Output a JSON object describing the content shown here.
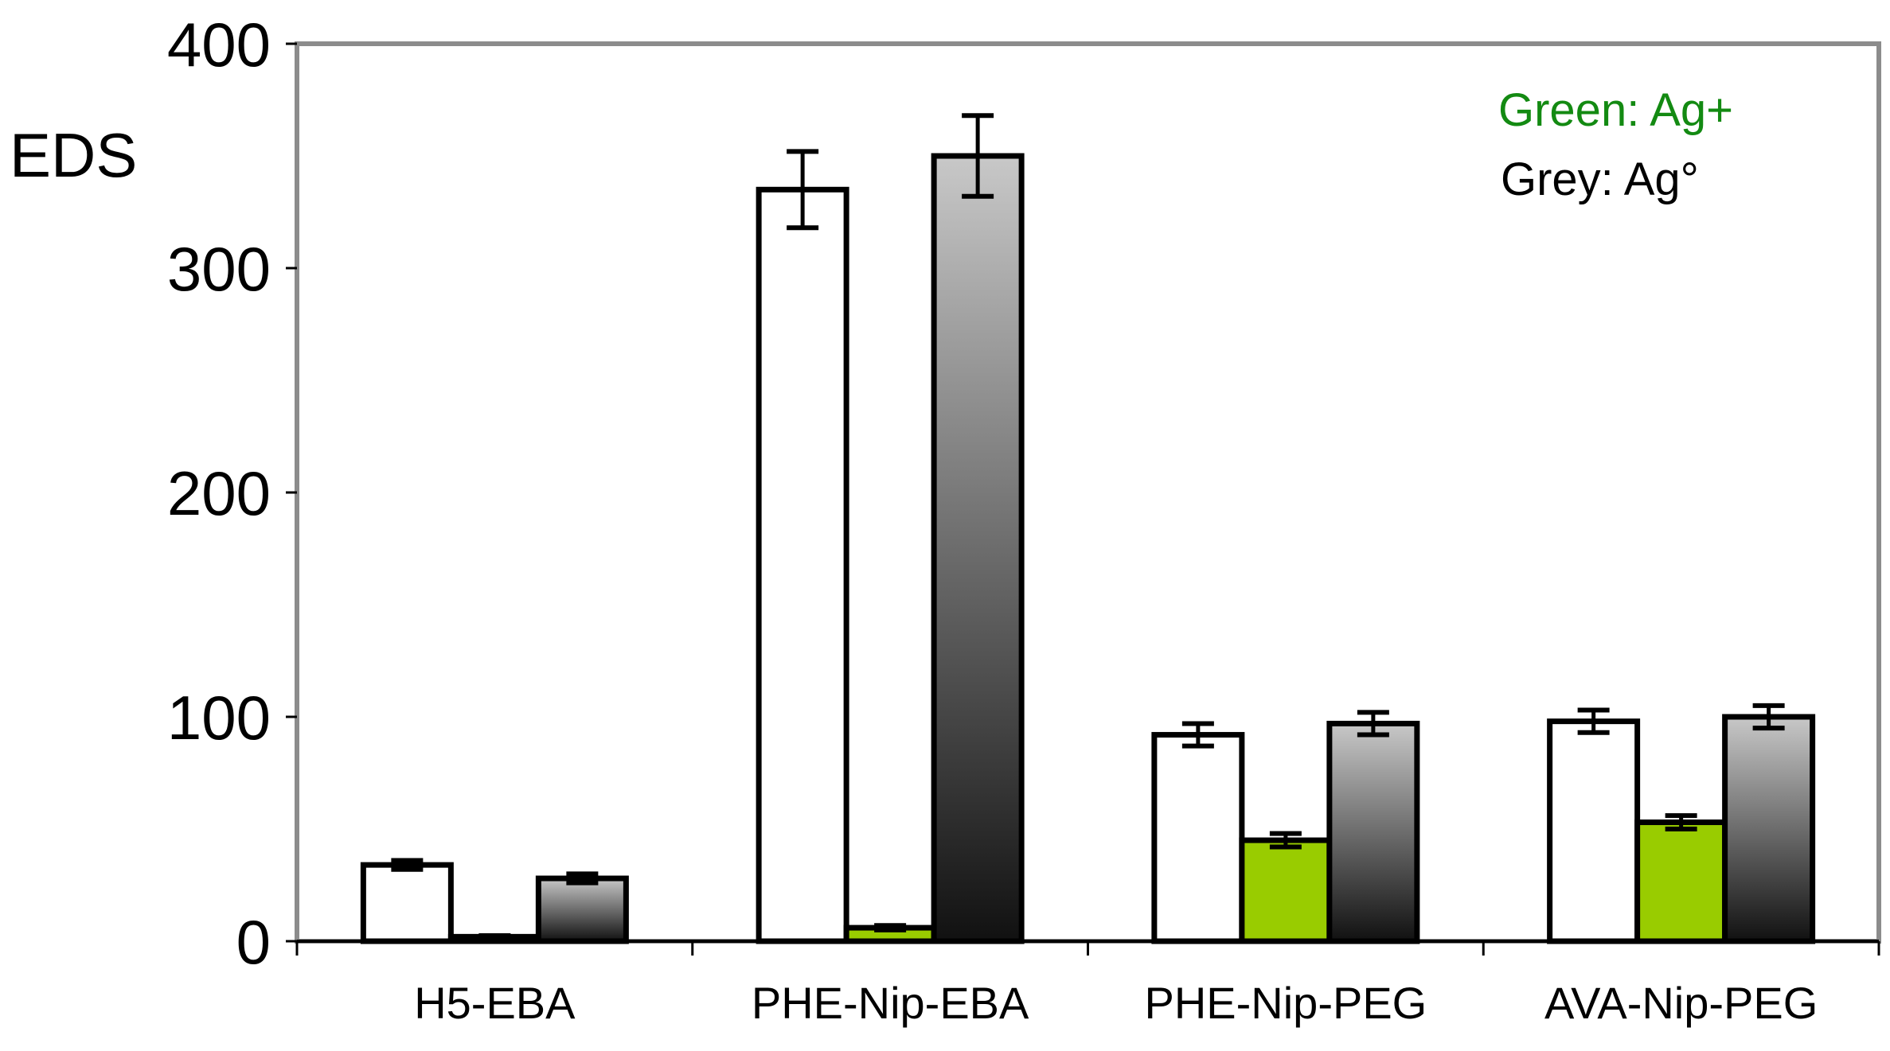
{
  "chart_data": {
    "type": "bar",
    "title": "",
    "ylabel": "EDS",
    "xlabel": "",
    "ylim": [
      0,
      400
    ],
    "yticks": [
      0,
      100,
      200,
      300,
      400
    ],
    "categories": [
      "H5-EBA",
      "PHE-Nip-EBA",
      "PHE-Nip-PEG",
      "AVA-Nip-PEG"
    ],
    "series": [
      {
        "values": [
          34,
          335,
          92,
          98
        ],
        "errors": [
          2,
          17,
          5,
          5
        ],
        "fill": "#ffffff"
      },
      {
        "values": [
          2,
          6,
          45,
          53
        ],
        "errors": [
          0.5,
          1,
          3,
          3
        ],
        "fill": "#99cc00"
      },
      {
        "values": [
          28,
          350,
          97,
          100
        ],
        "errors": [
          2,
          18,
          5,
          5
        ],
        "fill": "gradient-grey"
      }
    ],
    "grid": false,
    "legend_text": [
      {
        "text": "Green: Ag+",
        "color": "#138a12"
      },
      {
        "text": "Grey: Ag°",
        "color": "#000000"
      }
    ],
    "colors": {
      "frame": "#8c8c8c",
      "axis": "#000000",
      "green_bar": "#99cc00",
      "grey_top": "#c8c8c8",
      "grey_bottom": "#111111"
    }
  }
}
